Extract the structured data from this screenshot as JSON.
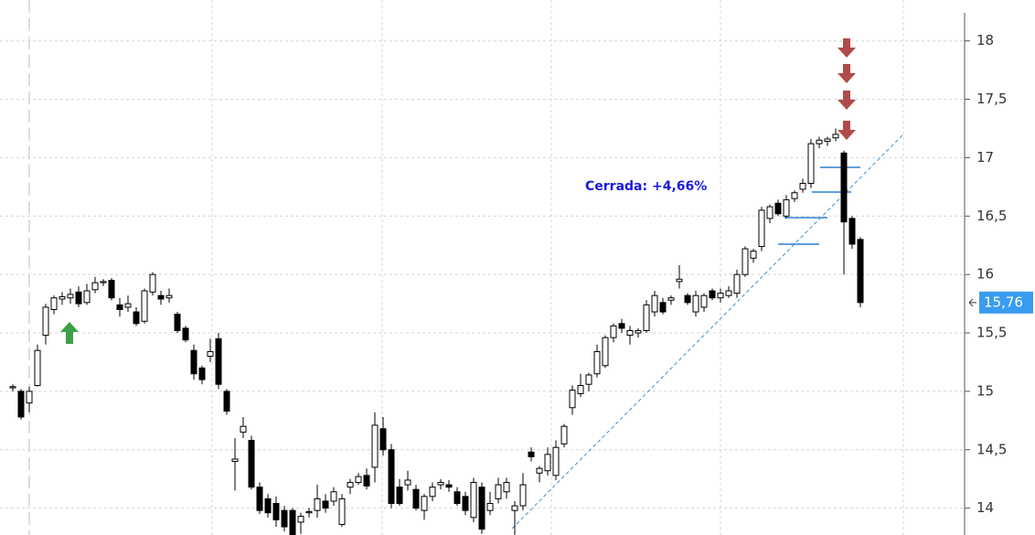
{
  "chart_data": {
    "type": "candlestick",
    "annotation": "Cerrada: +4,66%",
    "ylim": [
      13.77,
      18.35
    ],
    "yticks": [
      {
        "value": 14,
        "label": "14"
      },
      {
        "value": 14.5,
        "label": "14,5"
      },
      {
        "value": 15,
        "label": "15"
      },
      {
        "value": 15.5,
        "label": "15,5"
      },
      {
        "value": 16,
        "label": "16"
      },
      {
        "value": 16.5,
        "label": "16,5"
      },
      {
        "value": 17,
        "label": "17"
      },
      {
        "value": 17.5,
        "label": "17,5"
      },
      {
        "value": 18,
        "label": "18"
      }
    ],
    "grid": true,
    "last_value": {
      "value": 15.76,
      "label": "15,76"
    },
    "up_color": "#ffffff",
    "down_color": "#000000",
    "candles": {
      "open": [
        15.03,
        15.0,
        14.9,
        15.05,
        15.48,
        15.7,
        15.79,
        15.8,
        15.85,
        15.76,
        15.87,
        15.93,
        15.95,
        15.74,
        15.72,
        15.68,
        15.6,
        15.85,
        15.82,
        15.8,
        15.66,
        15.54,
        15.35,
        15.2,
        15.3,
        15.45,
        15.0,
        14.4,
        14.65,
        14.58,
        14.18,
        14.08,
        14.04,
        13.98,
        13.98,
        13.88,
        13.96,
        13.98,
        14.06,
        14.06,
        13.86,
        14.18,
        14.22,
        14.28,
        14.35,
        14.68,
        14.5,
        14.18,
        14.2,
        14.16,
        13.98,
        14.1,
        14.2,
        14.2,
        14.14,
        14.1,
        13.92,
        14.18,
        13.98,
        14.08,
        14.14,
        13.98,
        14.02,
        14.48,
        14.3,
        14.32,
        14.28,
        14.55,
        14.86,
        14.98,
        15.06,
        15.15,
        15.22,
        15.46,
        15.58,
        15.48,
        15.5,
        15.52,
        15.68,
        15.76,
        15.78,
        15.94,
        15.82,
        15.68,
        15.72,
        15.86,
        15.8,
        15.82,
        15.84,
        16.0,
        16.14,
        16.24,
        16.48,
        16.61,
        16.5,
        16.65,
        16.73,
        16.78,
        17.12,
        17.14,
        17.17,
        17.04,
        16.48,
        16.3
      ],
      "high": [
        15.06,
        15.02,
        15.04,
        15.4,
        15.75,
        15.82,
        15.85,
        15.88,
        15.9,
        15.92,
        15.98,
        15.96,
        15.97,
        15.8,
        15.82,
        15.72,
        15.88,
        16.02,
        15.86,
        15.88,
        15.68,
        15.56,
        15.4,
        15.22,
        15.45,
        15.5,
        15.02,
        14.6,
        14.78,
        14.62,
        14.22,
        14.12,
        14.1,
        14.02,
        14.0,
        13.96,
        14.0,
        14.2,
        14.12,
        14.18,
        14.12,
        14.25,
        14.3,
        14.34,
        14.82,
        14.78,
        14.55,
        14.25,
        14.32,
        14.2,
        14.12,
        14.22,
        14.25,
        14.24,
        14.18,
        14.14,
        14.26,
        14.22,
        14.14,
        14.26,
        14.26,
        14.06,
        14.3,
        14.52,
        14.36,
        14.52,
        14.58,
        14.72,
        15.05,
        15.15,
        15.16,
        15.4,
        15.48,
        15.58,
        15.62,
        15.56,
        15.54,
        15.78,
        15.86,
        15.8,
        15.82,
        16.08,
        15.84,
        15.86,
        15.84,
        15.88,
        15.88,
        15.9,
        16.04,
        16.24,
        16.22,
        16.58,
        16.6,
        16.64,
        16.68,
        16.72,
        16.82,
        17.16,
        17.18,
        17.18,
        17.25,
        17.06,
        16.5,
        16.32
      ],
      "low": [
        15.0,
        14.76,
        14.82,
        15.04,
        15.4,
        15.66,
        15.74,
        15.75,
        15.72,
        15.74,
        15.84,
        15.9,
        15.78,
        15.64,
        15.68,
        15.56,
        15.58,
        15.82,
        15.74,
        15.76,
        15.5,
        15.42,
        15.1,
        15.06,
        15.25,
        15.02,
        14.8,
        14.15,
        14.6,
        14.16,
        13.95,
        13.92,
        13.84,
        13.8,
        13.72,
        13.78,
        13.92,
        13.92,
        13.96,
        14.02,
        13.84,
        14.12,
        14.2,
        14.16,
        14.22,
        14.45,
        14.0,
        14.02,
        14.15,
        13.98,
        13.9,
        14.06,
        14.16,
        14.14,
        14.02,
        13.94,
        13.88,
        13.78,
        13.94,
        14.04,
        14.08,
        13.76,
        13.98,
        14.4,
        14.22,
        14.28,
        14.24,
        14.52,
        14.8,
        14.95,
        15.0,
        15.12,
        15.2,
        15.42,
        15.5,
        15.4,
        15.46,
        15.5,
        15.64,
        15.66,
        15.74,
        15.88,
        15.74,
        15.64,
        15.68,
        15.78,
        15.76,
        15.8,
        15.8,
        15.98,
        16.1,
        16.2,
        16.44,
        16.5,
        16.48,
        16.62,
        16.7,
        16.74,
        17.08,
        17.1,
        17.14,
        16.0,
        16.22,
        15.72
      ],
      "close": [
        15.04,
        14.78,
        15.0,
        15.35,
        15.72,
        15.8,
        15.81,
        15.83,
        15.75,
        15.86,
        15.93,
        15.94,
        15.8,
        15.7,
        15.75,
        15.58,
        15.86,
        16.0,
        15.79,
        15.82,
        15.52,
        15.44,
        15.15,
        15.1,
        15.34,
        15.06,
        14.83,
        14.42,
        14.7,
        14.18,
        13.98,
        13.96,
        13.9,
        13.84,
        13.76,
        13.93,
        13.97,
        14.08,
        14.0,
        14.14,
        14.08,
        14.22,
        14.27,
        14.19,
        14.71,
        14.5,
        14.04,
        14.04,
        14.24,
        14.0,
        14.1,
        14.18,
        14.22,
        14.18,
        14.04,
        13.98,
        14.22,
        13.82,
        14.04,
        14.2,
        14.22,
        14.02,
        14.2,
        14.44,
        14.34,
        14.46,
        14.52,
        14.7,
        15.01,
        15.05,
        15.14,
        15.34,
        15.46,
        15.56,
        15.54,
        15.52,
        15.52,
        15.74,
        15.82,
        15.68,
        15.8,
        15.96,
        15.76,
        15.82,
        15.82,
        15.8,
        15.84,
        15.86,
        16.0,
        16.22,
        16.2,
        16.55,
        16.58,
        16.52,
        16.64,
        16.7,
        16.78,
        17.12,
        17.15,
        17.16,
        17.2,
        16.45,
        16.26,
        15.76
      ]
    }
  }
}
